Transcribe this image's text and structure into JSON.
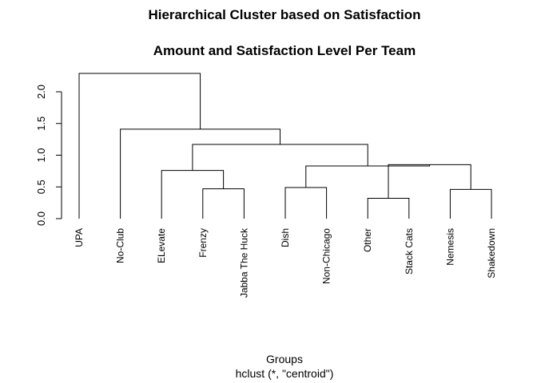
{
  "chart_data": {
    "type": "dendrogram",
    "title": "Hierarchical Cluster based on Satisfaction",
    "subtitle": "Amount and Satisfaction Level Per Team",
    "xlabel": "Groups",
    "sublabel": "hclust (*, \"centroid\")",
    "ylim": [
      0,
      2.3
    ],
    "yticks": [
      0.0,
      0.5,
      1.0,
      1.5,
      2.0
    ],
    "ytick_labels": [
      "0.0",
      "0.5",
      "1.0",
      "1.5",
      "2.0"
    ],
    "leaves": [
      "UPA",
      "No-Club",
      "ELevate",
      "Frenzy",
      "Jabba The Huck",
      "Dish",
      "Non-Chicago",
      "Other",
      "Stack Cats",
      "Nemesis",
      "Shakedown"
    ],
    "merges": [
      {
        "left": "Frenzy",
        "right": "Jabba The Huck",
        "height": 0.47
      },
      {
        "left": "Dish",
        "right": "Non-Chicago",
        "height": 0.49
      },
      {
        "left": "Other",
        "right": "Stack Cats",
        "height": 0.32
      },
      {
        "left": "Nemesis",
        "right": "Shakedown",
        "height": 0.46
      },
      {
        "left": "ELevate",
        "right": "Frenzy+Jabba The Huck",
        "height": 0.76
      },
      {
        "left": "Other+Stack Cats",
        "right": "Nemesis+Shakedown",
        "height": 0.85
      },
      {
        "left": "Dish+Non-Chicago",
        "right": "Other+Stack Cats+Nemesis+Shakedown",
        "height": 0.83
      },
      {
        "left": "ELevate+Frenzy+Jabba The Huck",
        "right": "Dish+Non-Chicago+Other+Stack Cats+Nemesis+Shakedown",
        "height": 1.17
      },
      {
        "left": "No-Club",
        "right": "ELevate+Frenzy+Jabba The Huck+Dish+Non-Chicago+Other+Stack Cats+Nemesis+Shakedown",
        "height": 1.41
      },
      {
        "left": "UPA",
        "right": "No-Club+ELevate+Frenzy+Jabba The Huck+Dish+Non-Chicago+Other+Stack Cats+Nemesis+Shakedown",
        "height": 2.29
      }
    ]
  }
}
